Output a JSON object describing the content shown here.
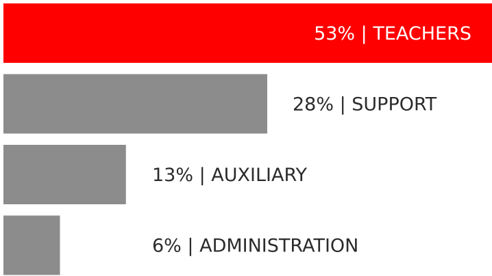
{
  "chart_data": {
    "type": "hbar",
    "values": [
      53,
      28,
      13,
      6
    ],
    "value_labels": [
      "53% | TEACHERS",
      "28% | SUPPORT",
      "13% | AUXILIARY",
      "6% | ADMINISTRATION"
    ],
    "colors": [
      "#ff0000",
      "#8c8c8c",
      "#8c8c8c",
      "#8c8c8c"
    ]
  }
}
